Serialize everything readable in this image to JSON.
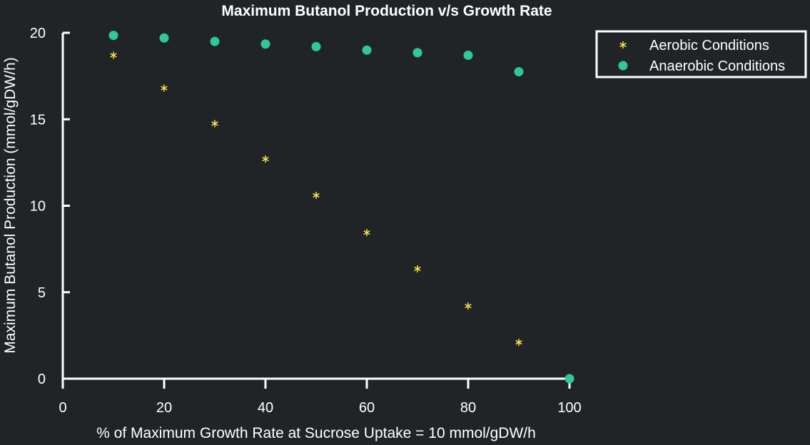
{
  "chart_data": {
    "type": "scatter",
    "title": "Maximum Butanol Production v/s Growth Rate",
    "xlabel": "% of Maximum Growth Rate at Sucrose Uptake = 10 mmol/gDW/h",
    "ylabel": "Maximum Butanol Production (mmol/gDW/h)",
    "xlim": [
      0,
      100
    ],
    "ylim": [
      0,
      20
    ],
    "xticks": [
      "0",
      "20",
      "40",
      "60",
      "80",
      "100"
    ],
    "yticks": [
      "0",
      "5",
      "10",
      "15",
      "20"
    ],
    "grid": false,
    "legend_position": "top-right",
    "series": [
      {
        "name": "Aerobic Conditions",
        "marker": "asterisk",
        "color": "#f7e94f",
        "x": [
          10,
          20,
          30,
          40,
          50,
          60,
          70,
          80,
          90
        ],
        "y": [
          18.7,
          16.8,
          14.75,
          12.7,
          10.6,
          8.45,
          6.35,
          4.2,
          2.1
        ]
      },
      {
        "name": "Anaerobic Conditions",
        "marker": "circle",
        "color": "#2ec994",
        "x": [
          10,
          20,
          30,
          40,
          50,
          60,
          70,
          80,
          90,
          100
        ],
        "y": [
          19.85,
          19.7,
          19.5,
          19.35,
          19.2,
          19.0,
          18.85,
          18.7,
          17.75,
          0
        ]
      }
    ]
  }
}
